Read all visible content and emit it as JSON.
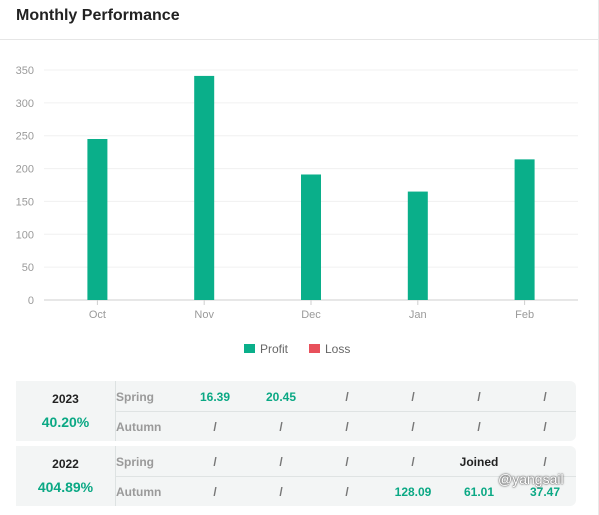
{
  "header": {
    "title": "Monthly Performance"
  },
  "chart_data": {
    "type": "bar",
    "categories": [
      "Oct",
      "Nov",
      "Dec",
      "Jan",
      "Feb"
    ],
    "series": [
      {
        "name": "Profit",
        "color": "#0aaf8a",
        "values": [
          245,
          341,
          191,
          165,
          214
        ]
      },
      {
        "name": "Loss",
        "color": "#e8505b",
        "values": [
          0,
          0,
          0,
          0,
          0
        ]
      }
    ],
    "yticks": [
      0,
      50,
      100,
      150,
      200,
      250,
      300,
      350
    ],
    "ylim": [
      0,
      350
    ],
    "legend": "bottom",
    "grid": true
  },
  "table": {
    "years": [
      {
        "year": "2023",
        "return": "40.20%",
        "rows": [
          {
            "season": "Spring",
            "cells": [
              "16.39",
              "20.45",
              "/",
              "/",
              "/",
              "/"
            ]
          },
          {
            "season": "Autumn",
            "cells": [
              "/",
              "/",
              "/",
              "/",
              "/",
              "/"
            ]
          }
        ]
      },
      {
        "year": "2022",
        "return": "404.89%",
        "rows": [
          {
            "season": "Spring",
            "cells": [
              "/",
              "/",
              "/",
              "/",
              "Joined",
              "/"
            ]
          },
          {
            "season": "Autumn",
            "cells": [
              "/",
              "/",
              "/",
              "128.09",
              "61.01",
              "37.47"
            ]
          }
        ]
      }
    ]
  },
  "watermark": "@yangsail"
}
